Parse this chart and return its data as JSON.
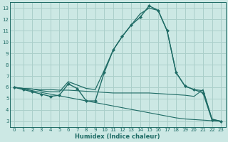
{
  "xlabel": "Humidex (Indice chaleur)",
  "bg_color": "#cce8e4",
  "grid_color": "#aacfca",
  "line_color": "#1e6b65",
  "xlim": [
    -0.5,
    23.5
  ],
  "ylim": [
    2.5,
    13.5
  ],
  "xticks": [
    0,
    1,
    2,
    3,
    4,
    5,
    6,
    7,
    8,
    9,
    10,
    11,
    12,
    13,
    14,
    15,
    16,
    17,
    18,
    19,
    20,
    21,
    22,
    23
  ],
  "yticks": [
    3,
    4,
    5,
    6,
    7,
    8,
    9,
    10,
    11,
    12,
    13
  ],
  "line1_diag": {
    "x": [
      0,
      1,
      2,
      3,
      4,
      5,
      6,
      7,
      8,
      9,
      10,
      11,
      12,
      13,
      14,
      15,
      16,
      17,
      18,
      19,
      20,
      21,
      22,
      23
    ],
    "y": [
      6.0,
      5.85,
      5.7,
      5.55,
      5.4,
      5.25,
      5.1,
      4.95,
      4.8,
      4.65,
      4.5,
      4.35,
      4.2,
      4.05,
      3.9,
      3.75,
      3.6,
      3.45,
      3.3,
      3.2,
      3.15,
      3.1,
      3.05,
      3.0
    ]
  },
  "line2_flat": {
    "x": [
      0,
      1,
      2,
      3,
      4,
      5,
      6,
      7,
      8,
      9,
      10,
      11,
      12,
      13,
      14,
      15,
      16,
      17,
      18,
      19,
      20,
      21,
      22,
      23
    ],
    "y": [
      6.0,
      5.9,
      5.85,
      5.8,
      5.8,
      5.75,
      5.75,
      5.7,
      5.65,
      5.6,
      5.55,
      5.5,
      5.5,
      5.5,
      5.5,
      5.5,
      5.45,
      5.4,
      5.35,
      5.3,
      5.2,
      5.8,
      3.2,
      3.0
    ]
  },
  "line3_upper": {
    "x": [
      0,
      1,
      2,
      3,
      4,
      5,
      6,
      7,
      8,
      9,
      10,
      11,
      12,
      13,
      14,
      15,
      16,
      17,
      18,
      19,
      20,
      21,
      22,
      23
    ],
    "y": [
      6.0,
      5.9,
      5.85,
      5.7,
      5.6,
      5.6,
      6.5,
      6.2,
      5.9,
      5.8,
      7.5,
      9.3,
      10.5,
      11.5,
      12.5,
      13.0,
      12.8,
      11.0,
      7.3,
      6.1,
      5.8,
      5.7,
      3.15,
      3.0
    ]
  },
  "line4_main": {
    "x": [
      0,
      1,
      2,
      3,
      4,
      5,
      6,
      7,
      8,
      9,
      10,
      11,
      12,
      13,
      14,
      15,
      16,
      17,
      18,
      19,
      20,
      21,
      22,
      23
    ],
    "y": [
      6.0,
      5.8,
      5.6,
      5.4,
      5.2,
      5.3,
      6.3,
      5.9,
      4.8,
      4.8,
      7.3,
      9.3,
      10.5,
      11.5,
      12.2,
      13.2,
      12.8,
      11.0,
      7.3,
      6.1,
      5.8,
      5.5,
      3.1,
      3.0
    ]
  }
}
